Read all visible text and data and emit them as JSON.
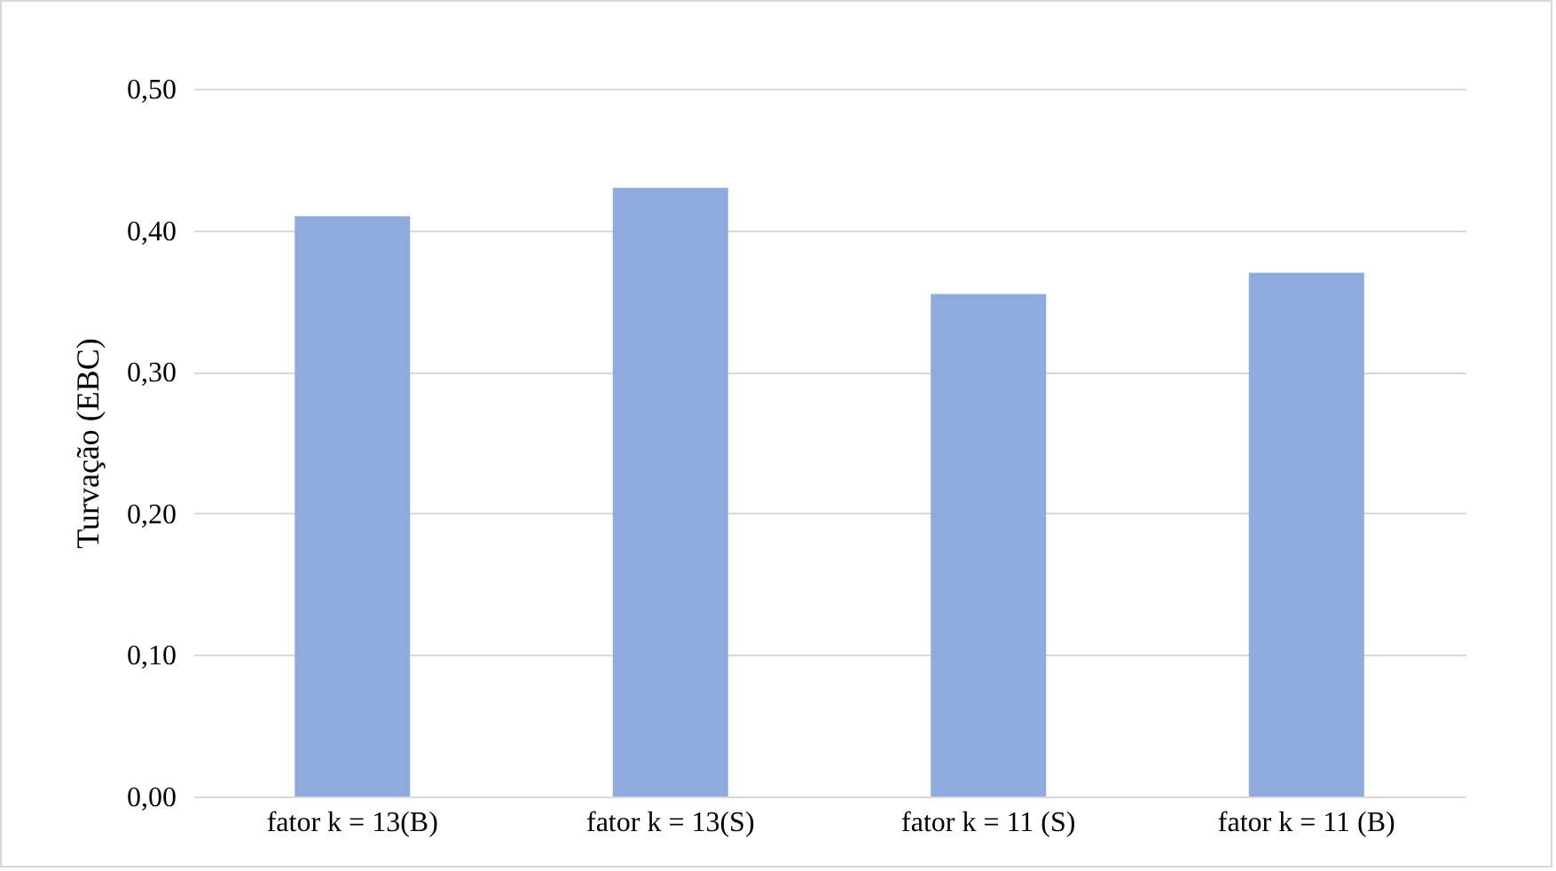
{
  "chart_data": {
    "type": "bar",
    "ylabel": "Turvação (EBC)",
    "categories": [
      "fator k = 13(B)",
      "fator k = 13(S)",
      "fator k = 11 (S)",
      "fator k = 11 (B)"
    ],
    "values": [
      0.41,
      0.43,
      0.355,
      0.37
    ],
    "color": "#8faadc",
    "ylim": [
      0,
      0.5
    ],
    "yticks": [
      {
        "value": 0,
        "label": "0,00"
      },
      {
        "value": 0.1,
        "label": "0,10"
      },
      {
        "value": 0.2,
        "label": "0,20"
      },
      {
        "value": 0.3,
        "label": "0,30"
      },
      {
        "value": 0.4,
        "label": "0,40"
      },
      {
        "value": 0.5,
        "label": "0,50"
      }
    ],
    "grid": "y"
  }
}
